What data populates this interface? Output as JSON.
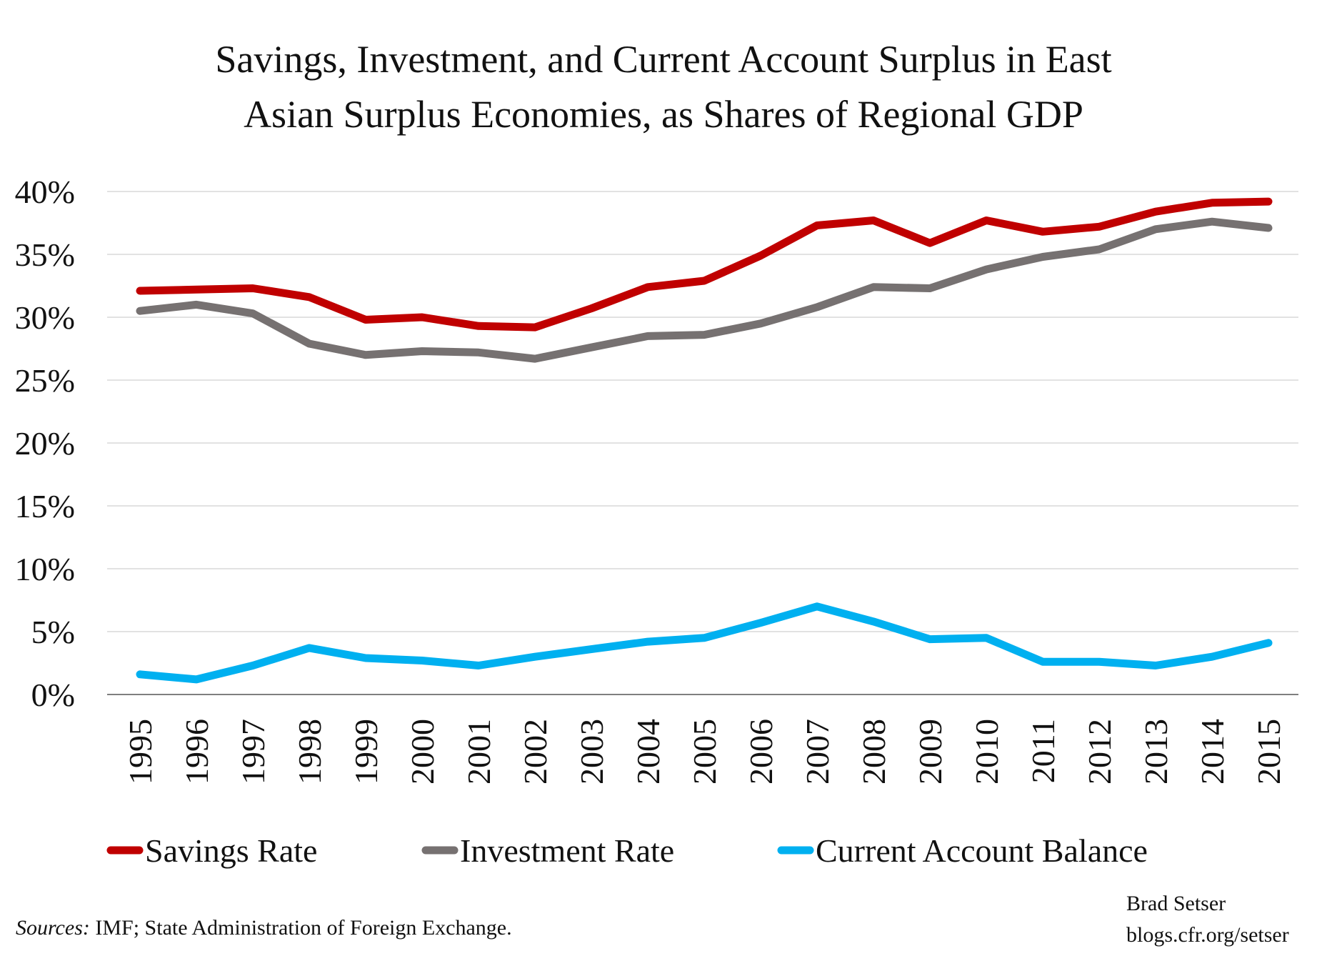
{
  "chart_data": {
    "type": "line",
    "title_lines": [
      "Savings, Investment, and Current Account Surplus in East",
      "Asian Surplus Economies, as Shares of Regional GDP"
    ],
    "xlabel": "",
    "ylabel": "",
    "ylim": [
      0,
      40
    ],
    "yticks": [
      0,
      5,
      10,
      15,
      20,
      25,
      30,
      35,
      40
    ],
    "ytick_labels": [
      "0%",
      "5%",
      "10%",
      "15%",
      "20%",
      "25%",
      "30%",
      "35%",
      "40%"
    ],
    "grid": true,
    "categories": [
      "1995",
      "1996",
      "1997",
      "1998",
      "1999",
      "2000",
      "2001",
      "2002",
      "2003",
      "2004",
      "2005",
      "2006",
      "2007",
      "2008",
      "2009",
      "2010",
      "2011",
      "2012",
      "2013",
      "2014",
      "2015"
    ],
    "series": [
      {
        "name": "Savings Rate",
        "color": "#c00000",
        "values": [
          32.1,
          32.2,
          32.3,
          31.6,
          29.8,
          30.0,
          29.3,
          29.2,
          30.7,
          32.4,
          32.9,
          34.9,
          37.3,
          37.7,
          35.9,
          37.7,
          36.8,
          37.2,
          38.4,
          39.1,
          39.2
        ]
      },
      {
        "name": "Investment Rate",
        "color": "#767171",
        "values": [
          30.5,
          31.0,
          30.3,
          27.9,
          27.0,
          27.3,
          27.2,
          26.7,
          27.6,
          28.5,
          28.6,
          29.5,
          30.8,
          32.4,
          32.3,
          33.8,
          34.8,
          35.4,
          37.0,
          37.6,
          37.1
        ]
      },
      {
        "name": "Current Account Balance",
        "color": "#00b0f0",
        "values": [
          1.6,
          1.2,
          2.3,
          3.7,
          2.9,
          2.7,
          2.3,
          3.0,
          3.6,
          4.2,
          4.5,
          5.7,
          7.0,
          5.8,
          4.4,
          4.5,
          2.6,
          2.6,
          2.3,
          3.0,
          4.1
        ]
      }
    ],
    "legend_position": "bottom"
  },
  "footer": {
    "sources_label": "Sources:",
    "sources_text": " IMF; State Administration of Foreign Exchange.",
    "author": "Brad Setser",
    "website": "blogs.cfr.org/setser"
  }
}
